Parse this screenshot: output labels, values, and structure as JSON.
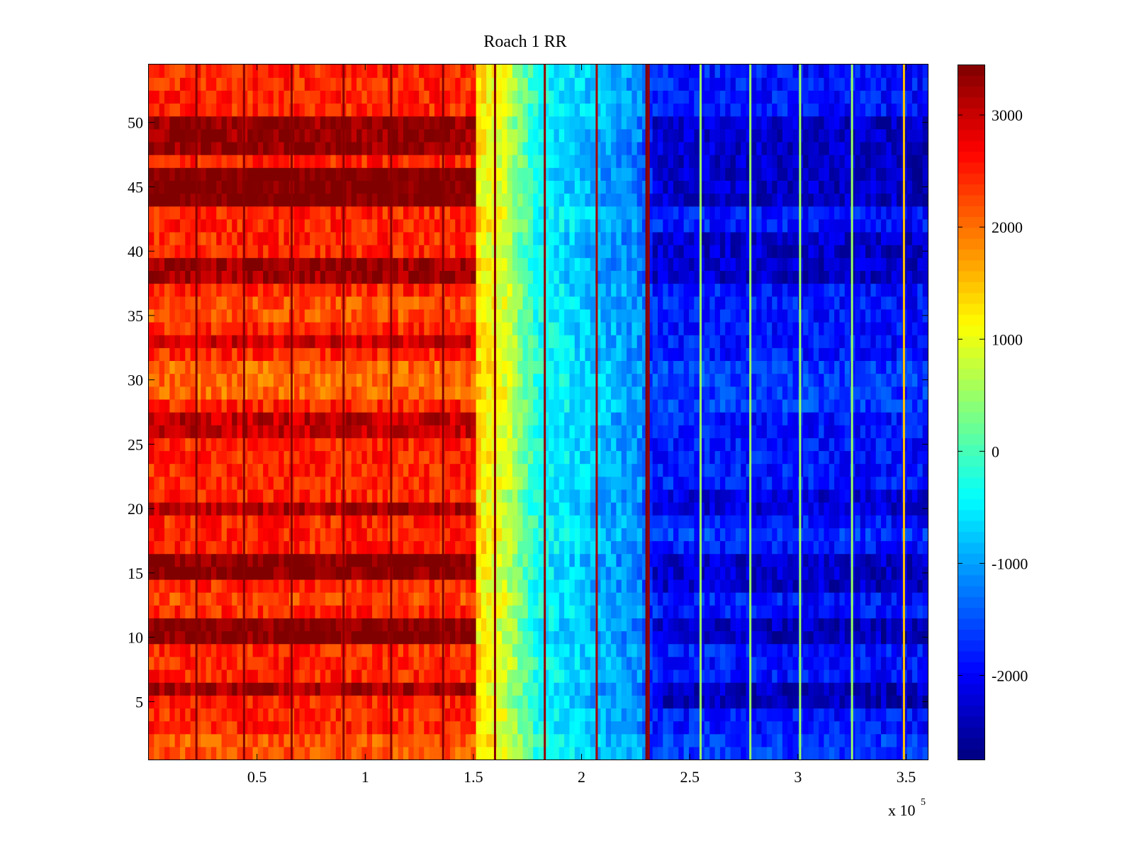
{
  "chart_data": {
    "type": "heatmap",
    "title": "Roach 1 RR",
    "xlabel": "",
    "ylabel": "",
    "xlim": [
      0,
      360000
    ],
    "ylim": [
      0.5,
      54.5
    ],
    "x_ticks": [
      50000,
      100000,
      150000,
      200000,
      250000,
      300000,
      350000
    ],
    "x_tick_labels": [
      "0.5",
      "1",
      "1.5",
      "2",
      "2.5",
      "3",
      "3.5"
    ],
    "x_multiplier_label": "x 10",
    "x_multiplier_exponent": "5",
    "y_ticks": [
      5,
      10,
      15,
      20,
      25,
      30,
      35,
      40,
      45,
      50
    ],
    "y_tick_labels": [
      "5",
      "10",
      "15",
      "20",
      "25",
      "30",
      "35",
      "40",
      "45",
      "50"
    ],
    "rows": 54,
    "colormap": "jet",
    "colorbar": {
      "clim": [
        -2750,
        3450
      ],
      "ticks": [
        -2000,
        -1000,
        0,
        1000,
        2000,
        3000
      ],
      "tick_labels": [
        "-2000",
        "-1000",
        "0",
        "1000",
        "2000",
        "3000"
      ]
    },
    "column_profile": [
      {
        "x": 0,
        "value": 2450
      },
      {
        "x": 150000,
        "value": 2450
      },
      {
        "x": 152000,
        "value": 1350
      },
      {
        "x": 165000,
        "value": 900
      },
      {
        "x": 180000,
        "value": -300
      },
      {
        "x": 200000,
        "value": -700
      },
      {
        "x": 228000,
        "value": -1100
      },
      {
        "x": 232000,
        "value": -1800
      },
      {
        "x": 360000,
        "value": -1900
      }
    ],
    "row_offsets_left": [
      {
        "rows": [
          6
        ],
        "value": 800
      },
      {
        "rows": [
          10,
          11
        ],
        "value": 1000
      },
      {
        "rows": [
          15,
          16
        ],
        "value": 1000
      },
      {
        "rows": [
          20
        ],
        "value": 700
      },
      {
        "rows": [
          26,
          27
        ],
        "value": 600
      },
      {
        "rows": [
          33
        ],
        "value": 500
      },
      {
        "rows": [
          38,
          39
        ],
        "value": 800
      },
      {
        "rows": [
          44,
          45,
          46
        ],
        "value": 1100
      },
      {
        "rows": [
          48,
          49,
          50
        ],
        "value": 900
      },
      {
        "rows": [
          29,
          30,
          31
        ],
        "value": -400
      },
      {
        "rows": [
          1,
          2
        ],
        "value": -300
      },
      {
        "rows": [
          13
        ],
        "value": -200
      },
      {
        "rows": [
          35,
          36
        ],
        "value": -250
      }
    ],
    "row_offsets_right": [
      {
        "rows": [
          5,
          6
        ],
        "value": -500
      },
      {
        "rows": [
          10,
          11
        ],
        "value": -500
      },
      {
        "rows": [
          14,
          15,
          16
        ],
        "value": -450
      },
      {
        "rows": [
          20,
          21
        ],
        "value": -350
      },
      {
        "rows": [
          38,
          39,
          40,
          41
        ],
        "value": -450
      },
      {
        "rows": [
          44,
          45,
          46,
          47,
          48,
          49,
          50
        ],
        "value": -450
      },
      {
        "rows": [
          28,
          29,
          30,
          31
        ],
        "value": 250
      },
      {
        "rows": [
          1,
          2
        ],
        "value": 200
      },
      {
        "rows": [
          18
        ],
        "value": 200
      }
    ],
    "vertical_lines": [
      {
        "x": 22000,
        "value": 3400
      },
      {
        "x": 44000,
        "value": 3400
      },
      {
        "x": 66000,
        "value": 3400
      },
      {
        "x": 90000,
        "value": 3400
      },
      {
        "x": 112000,
        "value": 3400
      },
      {
        "x": 136000,
        "value": 3400
      },
      {
        "x": 160000,
        "value": 3400
      },
      {
        "x": 183000,
        "value": 3300
      },
      {
        "x": 207000,
        "value": 3200
      },
      {
        "x": 230000,
        "value": 3450
      },
      {
        "x": 231000,
        "value": 3300
      },
      {
        "x": 255000,
        "value": 500
      },
      {
        "x": 278000,
        "value": 500
      },
      {
        "x": 301000,
        "value": 500
      },
      {
        "x": 325000,
        "value": 500
      },
      {
        "x": 349000,
        "value": 1500
      }
    ]
  }
}
